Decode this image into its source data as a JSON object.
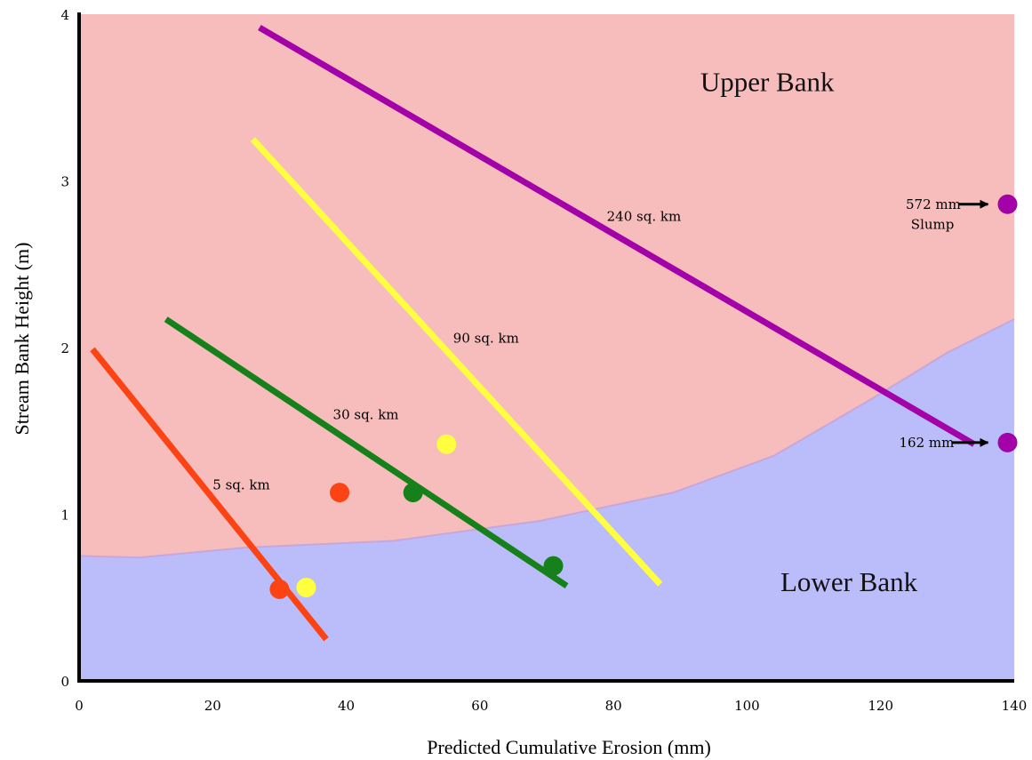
{
  "chart_data": {
    "type": "line",
    "title": "",
    "xlabel": "Predicted Cumulative Erosion (mm)",
    "ylabel": "Stream Bank Height (m)",
    "xlim": [
      0,
      140
    ],
    "ylim": [
      0,
      4
    ],
    "xticks": [
      0,
      20,
      40,
      60,
      80,
      100,
      120,
      140
    ],
    "yticks": [
      0,
      1,
      2,
      3,
      4
    ],
    "grid": false,
    "regions": [
      {
        "name": "Upper Bank",
        "color": "#f7bdbd"
      },
      {
        "name": "Lower Bank",
        "color": "#bbbdfb",
        "boundary": [
          {
            "x": 0,
            "y": 0.75
          },
          {
            "x": 9,
            "y": 0.74
          },
          {
            "x": 25,
            "y": 0.8
          },
          {
            "x": 47,
            "y": 0.84
          },
          {
            "x": 69,
            "y": 0.96
          },
          {
            "x": 89,
            "y": 1.13
          },
          {
            "x": 104,
            "y": 1.35
          },
          {
            "x": 119,
            "y": 1.7
          },
          {
            "x": 130,
            "y": 1.97
          },
          {
            "x": 140,
            "y": 2.17
          }
        ]
      }
    ],
    "series": [
      {
        "name": "5 sq. km",
        "color": "#fb4314",
        "line": [
          {
            "x": 2,
            "y": 1.99
          },
          {
            "x": 37,
            "y": 0.25
          }
        ],
        "points": [
          {
            "x": 30,
            "y": 0.55
          },
          {
            "x": 39,
            "y": 1.13
          }
        ],
        "label_at": {
          "x": 20,
          "y": 1.15
        }
      },
      {
        "name": "30 sq. km",
        "color": "#16801a",
        "line": [
          {
            "x": 13,
            "y": 2.17
          },
          {
            "x": 73,
            "y": 0.57
          }
        ],
        "points": [
          {
            "x": 50,
            "y": 1.13
          },
          {
            "x": 71,
            "y": 0.69
          }
        ],
        "label_at": {
          "x": 38,
          "y": 1.57
        }
      },
      {
        "name": "90 sq. km",
        "color": "#ffff40",
        "line": [
          {
            "x": 26,
            "y": 3.25
          },
          {
            "x": 87,
            "y": 0.58
          }
        ],
        "points": [
          {
            "x": 34,
            "y": 0.56
          },
          {
            "x": 55,
            "y": 1.42
          }
        ],
        "label_at": {
          "x": 56,
          "y": 2.03
        }
      },
      {
        "name": "240 sq. km",
        "color": "#a302a8",
        "line": [
          {
            "x": 27,
            "y": 3.92
          },
          {
            "x": 134,
            "y": 1.42
          }
        ],
        "points": [
          {
            "x": 139,
            "y": 1.43
          },
          {
            "x": 139,
            "y": 2.86
          }
        ],
        "label_at": {
          "x": 79,
          "y": 2.76
        }
      }
    ],
    "annotations": [
      {
        "text": "572 mm",
        "x": 132,
        "y": 2.86,
        "target": {
          "x": 139,
          "y": 2.86
        }
      },
      {
        "text": "Slump",
        "x": 131,
        "y": 2.74
      },
      {
        "text": "162 mm",
        "x": 131,
        "y": 1.43,
        "target": {
          "x": 139,
          "y": 1.43
        }
      }
    ]
  }
}
